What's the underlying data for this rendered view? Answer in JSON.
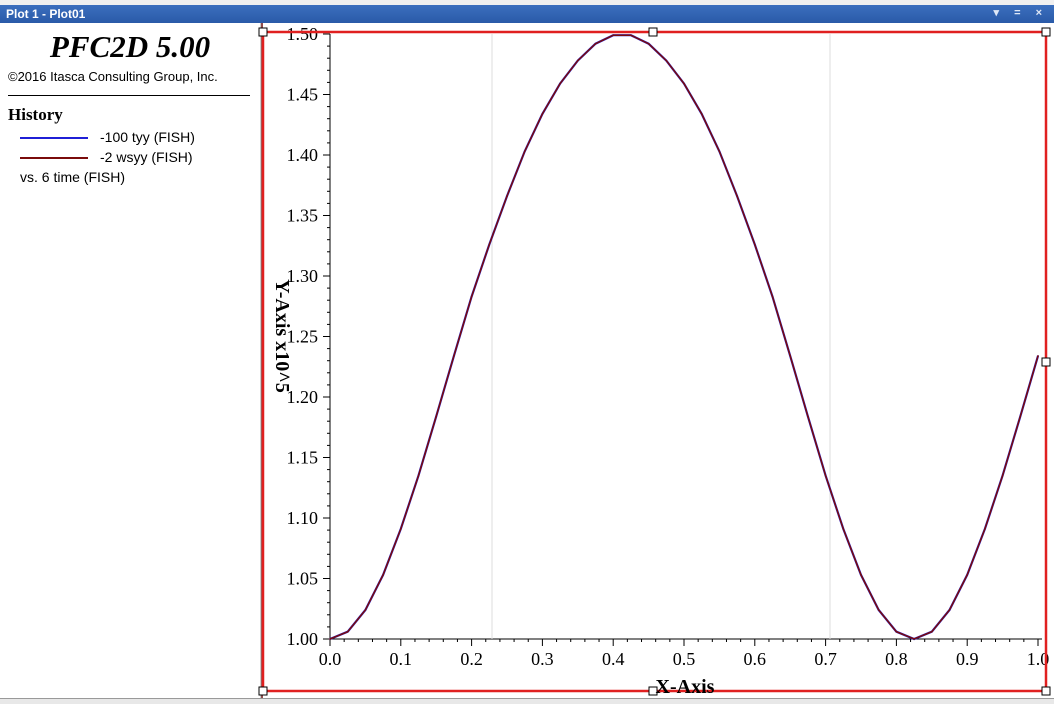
{
  "window": {
    "title": "Plot 1 - Plot01",
    "controls": [
      "▾",
      "=",
      "×"
    ]
  },
  "legend": {
    "app_title": "PFC2D 5.00",
    "copyright": "©2016 Itasca Consulting Group, Inc.",
    "history_heading": "History",
    "entries": [
      {
        "label": "-100 tyy (FISH)",
        "color": "#1f1fd6"
      },
      {
        "label": "-2 wsyy (FISH)",
        "color": "#7a0b0b"
      }
    ],
    "vs_label": "vs. 6 time (FISH)"
  },
  "chart_data": {
    "type": "line",
    "xlabel": "X-Axis",
    "ylabel": "Y-Axis x10^5",
    "xlim": [
      0.0,
      1.0
    ],
    "ylim": [
      1.0,
      1.5
    ],
    "xticks": [
      "0.0",
      "0.1",
      "0.2",
      "0.3",
      "0.4",
      "0.5",
      "0.6",
      "0.7",
      "0.8",
      "0.9",
      "1.0"
    ],
    "yticks": [
      "1.00",
      "1.05",
      "1.10",
      "1.15",
      "1.20",
      "1.25",
      "1.30",
      "1.35",
      "1.40",
      "1.45",
      "1.50"
    ],
    "series": [
      {
        "name": "-100 tyy (FISH)",
        "color": "#1f1fd6",
        "x": [
          0.0,
          0.025,
          0.05,
          0.075,
          0.1,
          0.125,
          0.15,
          0.175,
          0.2,
          0.225,
          0.25,
          0.275,
          0.3,
          0.325,
          0.35,
          0.375,
          0.4,
          0.425,
          0.45,
          0.475,
          0.5,
          0.525,
          0.55,
          0.575,
          0.6,
          0.625,
          0.65,
          0.675,
          0.7,
          0.725,
          0.75,
          0.775,
          0.8,
          0.825,
          0.85,
          0.875,
          0.9,
          0.925,
          0.95,
          0.975,
          1.0
        ],
        "y": [
          1.0,
          1.006,
          1.024,
          1.053,
          1.091,
          1.135,
          1.184,
          1.234,
          1.283,
          1.326,
          1.366,
          1.403,
          1.434,
          1.459,
          1.478,
          1.492,
          1.499,
          1.499,
          1.492,
          1.478,
          1.459,
          1.434,
          1.403,
          1.366,
          1.326,
          1.283,
          1.234,
          1.184,
          1.135,
          1.091,
          1.053,
          1.024,
          1.006,
          1.0,
          1.006,
          1.024,
          1.053,
          1.091,
          1.135,
          1.184,
          1.234
        ]
      },
      {
        "name": "-2 wsyy (FISH)",
        "color": "#7a0b0b",
        "x": [
          0.0,
          0.025,
          0.05,
          0.075,
          0.1,
          0.125,
          0.15,
          0.175,
          0.2,
          0.225,
          0.25,
          0.275,
          0.3,
          0.325,
          0.35,
          0.375,
          0.4,
          0.425,
          0.45,
          0.475,
          0.5,
          0.525,
          0.55,
          0.575,
          0.6,
          0.625,
          0.65,
          0.675,
          0.7,
          0.725,
          0.75,
          0.775,
          0.8,
          0.825,
          0.85,
          0.875,
          0.9,
          0.925,
          0.95,
          0.975,
          1.0
        ],
        "y": [
          1.0,
          1.006,
          1.024,
          1.053,
          1.091,
          1.135,
          1.184,
          1.234,
          1.283,
          1.326,
          1.366,
          1.403,
          1.434,
          1.459,
          1.478,
          1.492,
          1.499,
          1.499,
          1.492,
          1.478,
          1.459,
          1.434,
          1.403,
          1.366,
          1.326,
          1.283,
          1.234,
          1.184,
          1.135,
          1.091,
          1.053,
          1.024,
          1.006,
          1.0,
          1.006,
          1.024,
          1.053,
          1.091,
          1.135,
          1.184,
          1.234
        ]
      }
    ],
    "selection_color": "#e02020",
    "grid": false,
    "legend_position": "left panel"
  }
}
